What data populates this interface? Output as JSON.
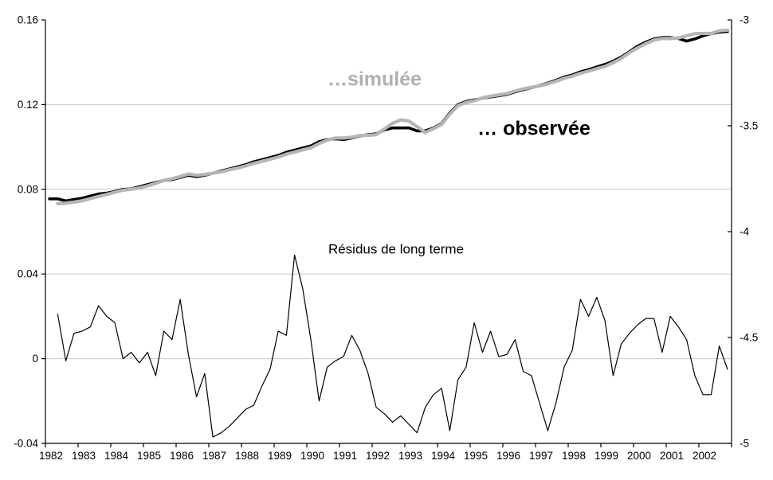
{
  "chart_data": {
    "type": "line",
    "title": "",
    "frequency": "quarterly",
    "background": "#ffffff",
    "axis_color": "#000000",
    "grid_color": "#c8c8c8",
    "grid_on": true,
    "series_labels": {
      "simulee": "…simulée",
      "observee": "… observée",
      "residuals": "Résidus de long terme"
    },
    "x": {
      "start_year": 1982,
      "end_year": 2002,
      "quarters": 84,
      "tick_labels": [
        "1982",
        "1983",
        "1984",
        "1985",
        "1986",
        "1987",
        "1988",
        "1989",
        "1990",
        "1991",
        "1992",
        "1993",
        "1994",
        "1995",
        "1996",
        "1997",
        "1998",
        "1999",
        "2000",
        "2001",
        "2002"
      ]
    },
    "left_axis": {
      "range": [
        -0.04,
        0.16
      ],
      "tick_values": [
        0.16,
        0.12,
        0.08,
        0.04,
        0,
        -0.04
      ],
      "tick_labels": [
        "0.16",
        "0.12",
        "0.08",
        "0.04",
        "0",
        "-0.04"
      ]
    },
    "right_axis": {
      "range": [
        -5,
        -3
      ],
      "tick_values": [
        -3,
        -3.5,
        -4,
        -4.5,
        -5
      ],
      "tick_labels": [
        "-3",
        "-3.5",
        "-4",
        "-4.5",
        "-5"
      ]
    },
    "gridline_values": [
      0.12,
      0.08,
      0.04,
      0
    ],
    "series": [
      {
        "id": "observee",
        "name": "… observée",
        "color": "#000000",
        "stroke_width": 3.6,
        "z": 1,
        "values": [
          0.0755,
          0.0755,
          0.0745,
          0.0752,
          0.0758,
          0.0768,
          0.0778,
          0.0782,
          0.079,
          0.08,
          0.0802,
          0.0812,
          0.0822,
          0.0832,
          0.0842,
          0.0846,
          0.0856,
          0.0866,
          0.086,
          0.0866,
          0.0876,
          0.0886,
          0.0896,
          0.0906,
          0.0916,
          0.093,
          0.094,
          0.095,
          0.096,
          0.0975,
          0.0985,
          0.0995,
          0.1005,
          0.1025,
          0.1035,
          0.1038,
          0.1035,
          0.1042,
          0.1052,
          0.1058,
          0.1062,
          0.108,
          0.109,
          0.109,
          0.109,
          0.1076,
          0.1076,
          0.109,
          0.111,
          0.116,
          0.12,
          0.1215,
          0.1222,
          0.123,
          0.1236,
          0.1242,
          0.1248,
          0.126,
          0.127,
          0.128,
          0.129,
          0.1302,
          0.1315,
          0.133,
          0.134,
          0.1355,
          0.1365,
          0.1378,
          0.139,
          0.1405,
          0.1425,
          0.145,
          0.1476,
          0.1495,
          0.151,
          0.1517,
          0.1517,
          0.1512,
          0.15,
          0.151,
          0.1525,
          0.1535,
          0.1542,
          0.1545
        ]
      },
      {
        "id": "simulee",
        "name": "…simulée",
        "color": "#b5b5b5",
        "stroke_width": 4.2,
        "z": 2,
        "values": [
          null,
          0.0732,
          0.0735,
          0.074,
          0.0746,
          0.0756,
          0.0766,
          0.0776,
          0.0786,
          0.0796,
          0.08,
          0.0806,
          0.0816,
          0.0828,
          0.0842,
          0.085,
          0.086,
          0.0872,
          0.0866,
          0.087,
          0.0876,
          0.0882,
          0.0892,
          0.09,
          0.091,
          0.0922,
          0.0932,
          0.0942,
          0.0952,
          0.0966,
          0.0976,
          0.0986,
          0.0996,
          0.1016,
          0.1032,
          0.1042,
          0.1042,
          0.1046,
          0.1054,
          0.1055,
          0.1058,
          0.1085,
          0.1112,
          0.1128,
          0.1122,
          0.1096,
          0.1068,
          0.1086,
          0.1106,
          0.1155,
          0.1195,
          0.121,
          0.1218,
          0.1232,
          0.124,
          0.1246,
          0.1252,
          0.1264,
          0.1274,
          0.1282,
          0.1288,
          0.1298,
          0.131,
          0.1324,
          0.1334,
          0.1348,
          0.1358,
          0.137,
          0.138,
          0.1398,
          0.1418,
          0.1445,
          0.1468,
          0.1488,
          0.1505,
          0.1512,
          0.1512,
          0.1515,
          0.1525,
          0.1535,
          0.1536,
          0.1536,
          0.1548,
          0.1552
        ]
      },
      {
        "id": "residuals",
        "name": "Résidus de long terme",
        "color": "#000000",
        "stroke_width": 1.2,
        "z": 0,
        "values": [
          null,
          0.021,
          -0.001,
          0.012,
          0.013,
          0.015,
          0.025,
          0.02,
          0.017,
          0.0,
          0.003,
          -0.002,
          0.003,
          -0.008,
          0.013,
          0.009,
          0.028,
          0.002,
          -0.018,
          -0.007,
          -0.037,
          -0.035,
          -0.032,
          -0.028,
          -0.024,
          -0.022,
          -0.013,
          -0.005,
          0.013,
          0.011,
          0.049,
          0.033,
          0.009,
          -0.02,
          -0.004,
          -0.001,
          0.001,
          0.011,
          0.004,
          -0.007,
          -0.023,
          -0.026,
          -0.03,
          -0.027,
          -0.031,
          -0.035,
          -0.023,
          -0.017,
          -0.014,
          -0.034,
          -0.01,
          -0.004,
          0.017,
          0.003,
          0.013,
          0.001,
          0.002,
          0.009,
          -0.006,
          -0.008,
          -0.021,
          -0.034,
          -0.021,
          -0.004,
          0.004,
          0.028,
          0.02,
          0.029,
          0.018,
          -0.008,
          0.007,
          0.012,
          0.016,
          0.019,
          0.019,
          0.003,
          0.02,
          0.015,
          0.009,
          -0.008,
          -0.017,
          -0.017,
          0.006,
          -0.005
        ]
      }
    ]
  }
}
